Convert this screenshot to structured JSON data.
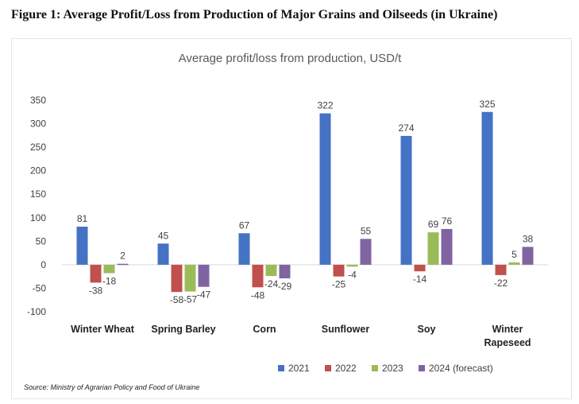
{
  "figure_title": "Figure 1: Average Profit/Loss from Production of Major Grains and Oilseeds (in Ukraine)",
  "source": "Source: Ministry of Agrarian Policy and Food of Ukraine",
  "chart_data": {
    "type": "bar",
    "title": "Average profit/loss from production, USD/t",
    "categories": [
      [
        "Winter Wheat"
      ],
      [
        "Spring Barley"
      ],
      [
        "Corn"
      ],
      [
        "Sunflower"
      ],
      [
        "Soy"
      ],
      [
        "Winter",
        "Rapeseed"
      ]
    ],
    "series": [
      {
        "name": "2021",
        "color": "#4472C4",
        "values": [
          81,
          45,
          67,
          322,
          274,
          325
        ]
      },
      {
        "name": "2022",
        "color": "#C0504D",
        "values": [
          -38,
          -58,
          -48,
          -25,
          -14,
          -22
        ]
      },
      {
        "name": "2023",
        "color": "#9BBB59",
        "values": [
          -18,
          -57,
          -24,
          -4,
          69,
          5
        ]
      },
      {
        "name": "2024 (forecast)",
        "color": "#8064A2",
        "values": [
          2,
          -47,
          -29,
          55,
          76,
          38
        ]
      }
    ],
    "ylim": [
      -100,
      350
    ],
    "yticks": [
      -100,
      -50,
      0,
      50,
      100,
      150,
      200,
      250,
      300,
      350
    ],
    "grid": false,
    "legend": "bottom"
  }
}
